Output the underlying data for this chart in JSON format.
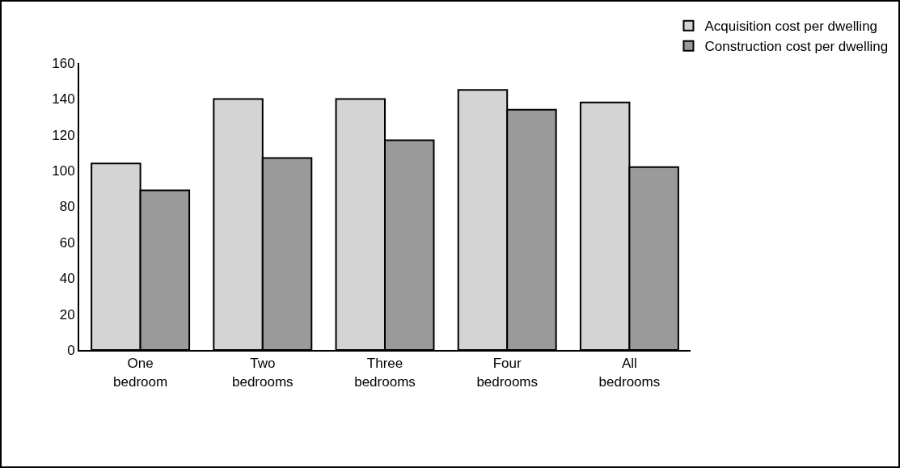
{
  "chart_data": {
    "type": "bar",
    "categories": [
      "One bedroom",
      "Two bedrooms",
      "Three bedrooms",
      "Four bedrooms",
      "All bedrooms"
    ],
    "series": [
      {
        "name": "Acquisition cost per dwelling",
        "color": "#d4d4d4",
        "values": [
          104,
          140,
          140,
          145,
          138
        ]
      },
      {
        "name": "Construction cost per dwelling",
        "color": "#9a9a9a",
        "values": [
          89,
          107,
          117,
          134,
          102
        ]
      }
    ],
    "ylim": [
      0,
      160
    ],
    "yticks": [
      0,
      20,
      40,
      60,
      80,
      100,
      120,
      140,
      160
    ],
    "grid": false,
    "legend": "top right"
  }
}
